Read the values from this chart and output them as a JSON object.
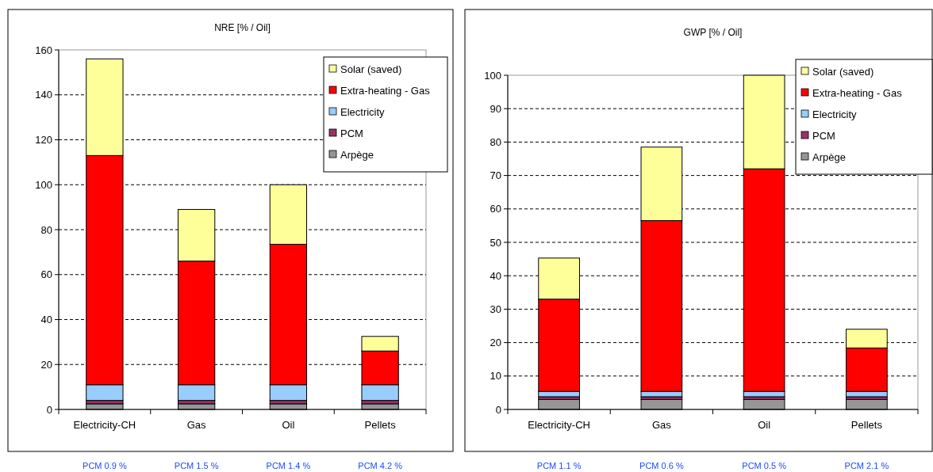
{
  "chart_data": [
    {
      "type": "bar",
      "title": "NRE [% / Oil]",
      "categories": [
        "Electricity-CH",
        "Gas",
        "Oil",
        "Pellets"
      ],
      "stacked": true,
      "ylim": [
        0,
        160
      ],
      "yticks": [
        0,
        20,
        40,
        60,
        80,
        100,
        120,
        140,
        160
      ],
      "grid": "y",
      "legend": "top right",
      "series": [
        {
          "name": "Arpège",
          "color": "#969696",
          "values": [
            2.5,
            2.5,
            2.5,
            2.5
          ]
        },
        {
          "name": "PCM",
          "color": "#993366",
          "values": [
            1.5,
            1.5,
            1.5,
            1.5
          ]
        },
        {
          "name": "Electricity",
          "color": "#99ccff",
          "values": [
            7,
            7,
            7,
            7
          ]
        },
        {
          "name": "Extra-heating - Gas",
          "color": "#ff0000",
          "values": [
            102,
            55,
            62.5,
            15
          ]
        },
        {
          "name": "Solar (saved)",
          "color": "#ffff99",
          "values": [
            43,
            23,
            26.5,
            6.5
          ]
        }
      ],
      "annotations": [
        "PCM 0.9 %",
        "PCM 1.5 %",
        "PCM 1.4 %",
        "PCM 4.2 %"
      ]
    },
    {
      "type": "bar",
      "title": "GWP [% / Oil]",
      "categories": [
        "Electricity-CH",
        "Gas",
        "Oil",
        "Pellets"
      ],
      "stacked": true,
      "ylim": [
        0,
        100
      ],
      "yticks": [
        0,
        10,
        20,
        30,
        40,
        50,
        60,
        70,
        80,
        90,
        100
      ],
      "grid": "y",
      "legend": "top right",
      "series": [
        {
          "name": "Arpège",
          "color": "#969696",
          "values": [
            3,
            3,
            3,
            3
          ]
        },
        {
          "name": "PCM",
          "color": "#993366",
          "values": [
            0.8,
            0.8,
            0.8,
            0.8
          ]
        },
        {
          "name": "Electricity",
          "color": "#99ccff",
          "values": [
            1.6,
            1.6,
            1.6,
            1.6
          ]
        },
        {
          "name": "Extra-heating - Gas",
          "color": "#ff0000",
          "values": [
            27.6,
            51.1,
            66.6,
            13
          ]
        },
        {
          "name": "Solar (saved)",
          "color": "#ffff99",
          "values": [
            12.3,
            22,
            28,
            5.6
          ]
        }
      ],
      "annotations": [
        "PCM 1.1 %",
        "PCM 0.6 %",
        "PCM 0.5 %",
        "PCM 2.1 %"
      ]
    }
  ]
}
